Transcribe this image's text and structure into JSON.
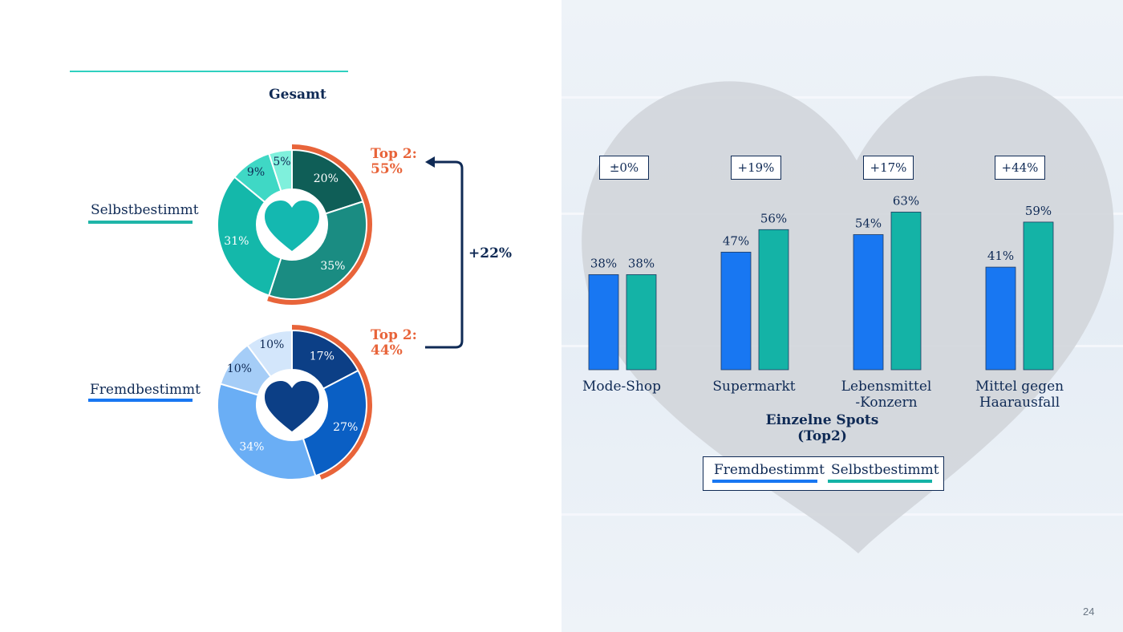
{
  "page_number": "24",
  "left": {
    "title": "Gesamt",
    "arrow_delta": "+22%",
    "donuts": [
      {
        "label": "Selbstbestimmt",
        "label_color": "#1fb5a8",
        "heart_color": "#14b8b0",
        "top2_line1": "Top 2:",
        "top2_line2": "55%",
        "top2_value": 55,
        "segments": [
          {
            "label": "20%",
            "value": 20,
            "color": "#0f5e57"
          },
          {
            "label": "35%",
            "value": 35,
            "color": "#1a8c82"
          },
          {
            "label": "31%",
            "value": 31,
            "color": "#14b8aa"
          },
          {
            "label": "9%",
            "value": 9,
            "color": "#3fd8c5"
          },
          {
            "label": "5%",
            "value": 5,
            "color": "#7ff0dc"
          }
        ]
      },
      {
        "label": "Fremdbestimmt",
        "label_color": "#1877f2",
        "heart_color": "#0c3f86",
        "top2_line1": "Top 2:",
        "top2_line2": "44%",
        "top2_value": 44,
        "segments": [
          {
            "label": "17%",
            "value": 17,
            "color": "#0c3f86"
          },
          {
            "label": "27%",
            "value": 27,
            "color": "#0a5fc4"
          },
          {
            "label": "34%",
            "value": 34,
            "color": "#6aaef5"
          },
          {
            "label": "10%",
            "value": 10,
            "color": "#a5cdf7"
          },
          {
            "label": "10%",
            "value": 10,
            "color": "#d3e6fb"
          }
        ]
      }
    ],
    "top2_color": "#e8643a"
  },
  "chart_data": {
    "type": "bar",
    "title": "Einzelne Spots",
    "subtitle": "(Top2)",
    "categories": [
      "Mode-Shop",
      "Supermarkt",
      "Lebensmittel\n-Konzern",
      "Mittel gegen\nHaarausfall"
    ],
    "category_lines": [
      [
        "Mode-Shop"
      ],
      [
        "Supermarkt"
      ],
      [
        "Lebensmittel",
        "-Konzern"
      ],
      [
        "Mittel gegen",
        "Haarausfall"
      ]
    ],
    "deltas": [
      "±0%",
      "+19%",
      "+17%",
      "+44%"
    ],
    "ylim": [
      0,
      100
    ],
    "grid": false,
    "legend_placement": "bottom-center",
    "series": [
      {
        "name": "Fremdbestimmt",
        "values": [
          38,
          47,
          54,
          41
        ],
        "labels": [
          "38%",
          "47%",
          "54%",
          "41%"
        ],
        "color": "#1877f2"
      },
      {
        "name": "Selbstbestimmt",
        "values": [
          38,
          56,
          63,
          59
        ],
        "labels": [
          "38%",
          "56%",
          "63%",
          "59%"
        ],
        "color": "#14b3a6"
      }
    ]
  }
}
